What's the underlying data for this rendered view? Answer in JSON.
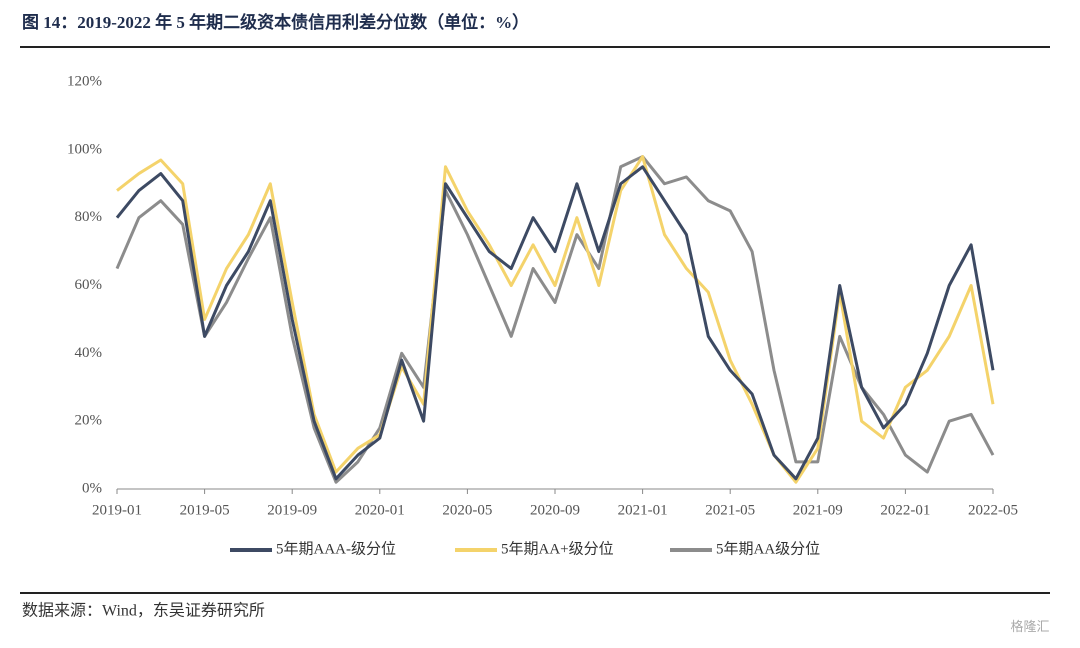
{
  "chart_data": {
    "type": "line",
    "title": "图 14：2019-2022 年 5 年期二级资本债信用利差分位数（单位：%）",
    "source": "数据来源：Wind，东吴证券研究所",
    "watermark": "格隆汇",
    "x": [
      "2019-01",
      "2019-02",
      "2019-03",
      "2019-04",
      "2019-05",
      "2019-06",
      "2019-07",
      "2019-08",
      "2019-09",
      "2019-10",
      "2019-11",
      "2019-12",
      "2020-01",
      "2020-02",
      "2020-03",
      "2020-04",
      "2020-05",
      "2020-06",
      "2020-07",
      "2020-08",
      "2020-09",
      "2020-10",
      "2020-11",
      "2020-12",
      "2021-01",
      "2021-02",
      "2021-03",
      "2021-04",
      "2021-05",
      "2021-06",
      "2021-07",
      "2021-08",
      "2021-09",
      "2021-10",
      "2021-11",
      "2021-12",
      "2022-01",
      "2022-02",
      "2022-03",
      "2022-04",
      "2022-05"
    ],
    "xticks": [
      "2019-01",
      "2019-05",
      "2019-09",
      "2020-01",
      "2020-05",
      "2020-09",
      "2021-01",
      "2021-05",
      "2021-09",
      "2022-01",
      "2022-05"
    ],
    "series": [
      {
        "name": "5年期AAA-级分位",
        "color": "#3d4a63",
        "values": [
          80,
          88,
          93,
          85,
          45,
          60,
          70,
          85,
          50,
          20,
          3,
          10,
          15,
          38,
          20,
          90,
          80,
          70,
          65,
          80,
          70,
          90,
          70,
          90,
          95,
          85,
          75,
          45,
          35,
          28,
          10,
          3,
          15,
          60,
          30,
          18,
          25,
          40,
          60,
          72,
          35
        ]
      },
      {
        "name": "5年期AA+级分位",
        "color": "#f4d36b",
        "values": [
          88,
          93,
          97,
          90,
          50,
          65,
          75,
          90,
          55,
          22,
          5,
          12,
          16,
          36,
          25,
          95,
          82,
          72,
          60,
          72,
          60,
          80,
          60,
          88,
          98,
          75,
          65,
          58,
          38,
          25,
          10,
          2,
          12,
          58,
          20,
          15,
          30,
          35,
          45,
          60,
          25
        ]
      },
      {
        "name": "5年期AA级分位",
        "color": "#8c8c8c",
        "values": [
          65,
          80,
          85,
          78,
          45,
          55,
          68,
          80,
          45,
          18,
          2,
          8,
          18,
          40,
          30,
          88,
          75,
          60,
          45,
          65,
          55,
          75,
          65,
          95,
          98,
          90,
          92,
          85,
          82,
          70,
          35,
          8,
          8,
          45,
          30,
          22,
          10,
          5,
          20,
          22,
          10
        ]
      }
    ],
    "ylim": [
      0,
      120
    ],
    "yticks": [
      {
        "value": 0,
        "label": "0%"
      },
      {
        "value": 20,
        "label": "20%"
      },
      {
        "value": 40,
        "label": "40%"
      },
      {
        "value": 60,
        "label": "60%"
      },
      {
        "value": 80,
        "label": "80%"
      },
      {
        "value": 100,
        "label": "100%"
      },
      {
        "value": 120,
        "label": "120%"
      }
    ],
    "grid": false
  }
}
